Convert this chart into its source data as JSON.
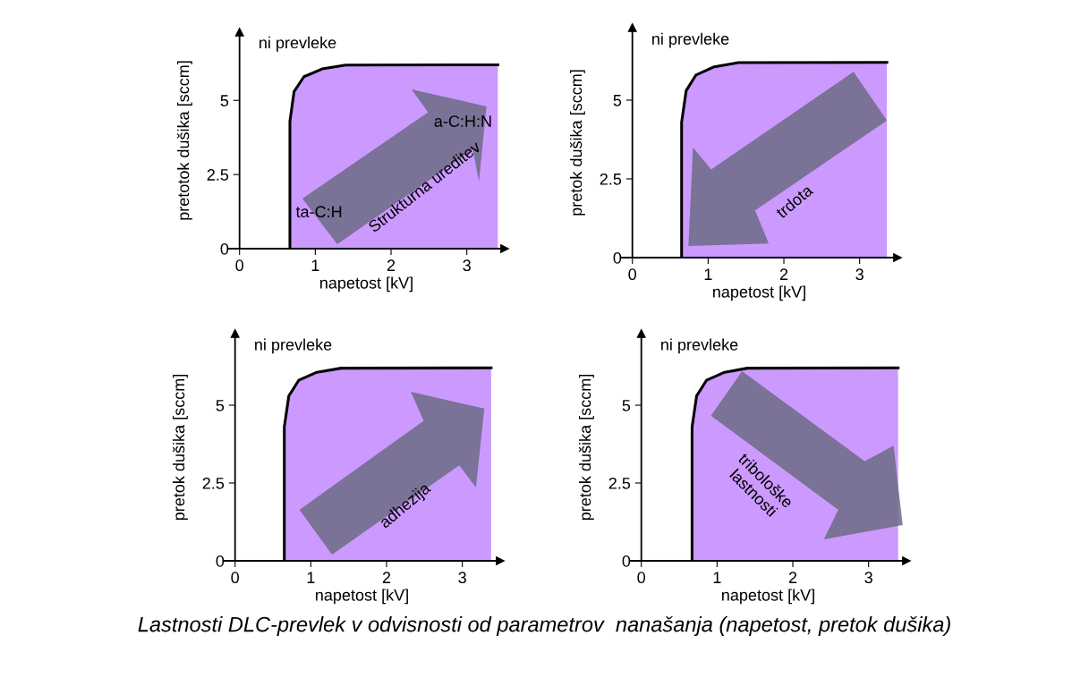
{
  "chart_data": [
    {
      "type": "area",
      "xlabel": "napetost [kV]",
      "ylabel": "pretotok dušika [sccm]",
      "xlim": [
        -0.15,
        3.5
      ],
      "ylim": [
        0,
        7.3
      ],
      "xticks": [
        0,
        1,
        2,
        3
      ],
      "yticks": [
        0,
        2.5,
        5
      ],
      "grid": false,
      "legend": false,
      "series": [
        {
          "color": "#cc99ff",
          "x": [
            0.665,
            0.665,
            0.72,
            0.85,
            1.09,
            1.4,
            3.41
          ],
          "values": [
            0,
            4.3,
            5.3,
            5.8,
            6.06,
            6.19,
            6.2
          ]
        }
      ],
      "annotations": [
        "ni prevleke",
        "ta-C:H",
        "a-C:H:N",
        "Strukturna ureditev",
        "Lastnosti DLC-prevlek v odvisnosti od parametrov  nanašanja (napetost, pretok dušika)"
      ]
    },
    {
      "type": "area",
      "xlabel": "napetost [kV]",
      "ylabel": "pretok dušika [sccm]",
      "xlim": [
        -0.15,
        3.5
      ],
      "ylim": [
        0,
        7.3
      ],
      "xticks": [
        0,
        1,
        2,
        3
      ],
      "yticks": [
        0,
        2.5,
        5
      ],
      "grid": false,
      "legend": false,
      "series": [
        {
          "color": "#cc99ff",
          "x": [
            0.65,
            0.65,
            0.71,
            0.84,
            1.08,
            1.4,
            3.36
          ],
          "values": [
            0,
            4.3,
            5.3,
            5.8,
            6.06,
            6.19,
            6.2
          ]
        }
      ],
      "annotations": [
        "ni prevleke",
        "trdota"
      ]
    },
    {
      "type": "area",
      "xlabel": "napetost [kV]",
      "ylabel": "pretok dušika [sccm]",
      "xlim": [
        -0.15,
        3.5
      ],
      "ylim": [
        0,
        7.3
      ],
      "xticks": [
        0,
        1,
        2,
        3
      ],
      "yticks": [
        0,
        2.5,
        5
      ],
      "grid": false,
      "legend": false,
      "series": [
        {
          "color": "#cc99ff",
          "x": [
            0.65,
            0.65,
            0.71,
            0.84,
            1.08,
            1.4,
            3.38
          ],
          "values": [
            0,
            4.3,
            5.3,
            5.8,
            6.06,
            6.19,
            6.2
          ]
        }
      ],
      "annotations": [
        "ni prevleke",
        "adhezija"
      ]
    },
    {
      "type": "area",
      "xlabel": "napetost [kV]",
      "ylabel": "pretok dušika [sccm]",
      "xlim": [
        -0.15,
        3.5
      ],
      "ylim": [
        0,
        7.3
      ],
      "xticks": [
        0,
        1,
        2,
        3
      ],
      "yticks": [
        0,
        2.5,
        5
      ],
      "grid": false,
      "legend": false,
      "series": [
        {
          "color": "#cc99ff",
          "x": [
            0.67,
            0.67,
            0.73,
            0.86,
            1.1,
            1.4,
            3.39
          ],
          "values": [
            0,
            4.3,
            5.3,
            5.8,
            6.06,
            6.19,
            6.2
          ]
        }
      ],
      "annotations": [
        "ni prevleke",
        "tribološke\nlastnosti"
      ]
    }
  ]
}
